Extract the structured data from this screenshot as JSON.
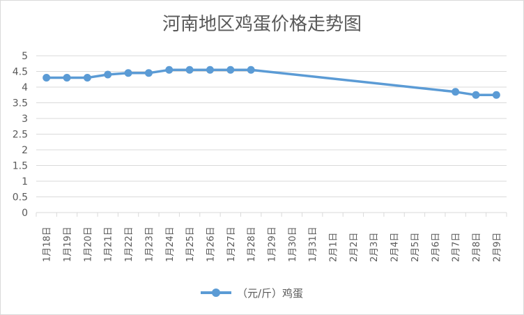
{
  "chart_data": {
    "type": "line",
    "title": "河南地区鸡蛋价格走势图",
    "categories": [
      "1月18日",
      "1月19日",
      "1月20日",
      "1月21日",
      "1月22日",
      "1月23日",
      "1月24日",
      "1月25日",
      "1月26日",
      "1月27日",
      "1月28日",
      "1月29日",
      "1月30日",
      "1月31日",
      "2月1日",
      "2月2日",
      "2月3日",
      "2月4日",
      "2月5日",
      "2月6日",
      "2月7日",
      "2月8日",
      "2月9日"
    ],
    "series": [
      {
        "name": "（元/斤）鸡蛋",
        "values": [
          4.3,
          4.3,
          4.3,
          4.4,
          4.45,
          4.45,
          4.55,
          4.55,
          4.55,
          4.55,
          4.55,
          null,
          null,
          null,
          null,
          null,
          null,
          null,
          null,
          null,
          3.85,
          3.75,
          3.75
        ],
        "color": "#5b9bd5"
      }
    ],
    "yticks": [
      "0",
      "0.5",
      "1",
      "1.5",
      "2",
      "2.5",
      "3",
      "3.5",
      "4",
      "4.5",
      "5"
    ],
    "ylim": [
      0,
      5
    ],
    "grid": true,
    "legend_position": "bottom",
    "line_connects_gaps": true
  }
}
